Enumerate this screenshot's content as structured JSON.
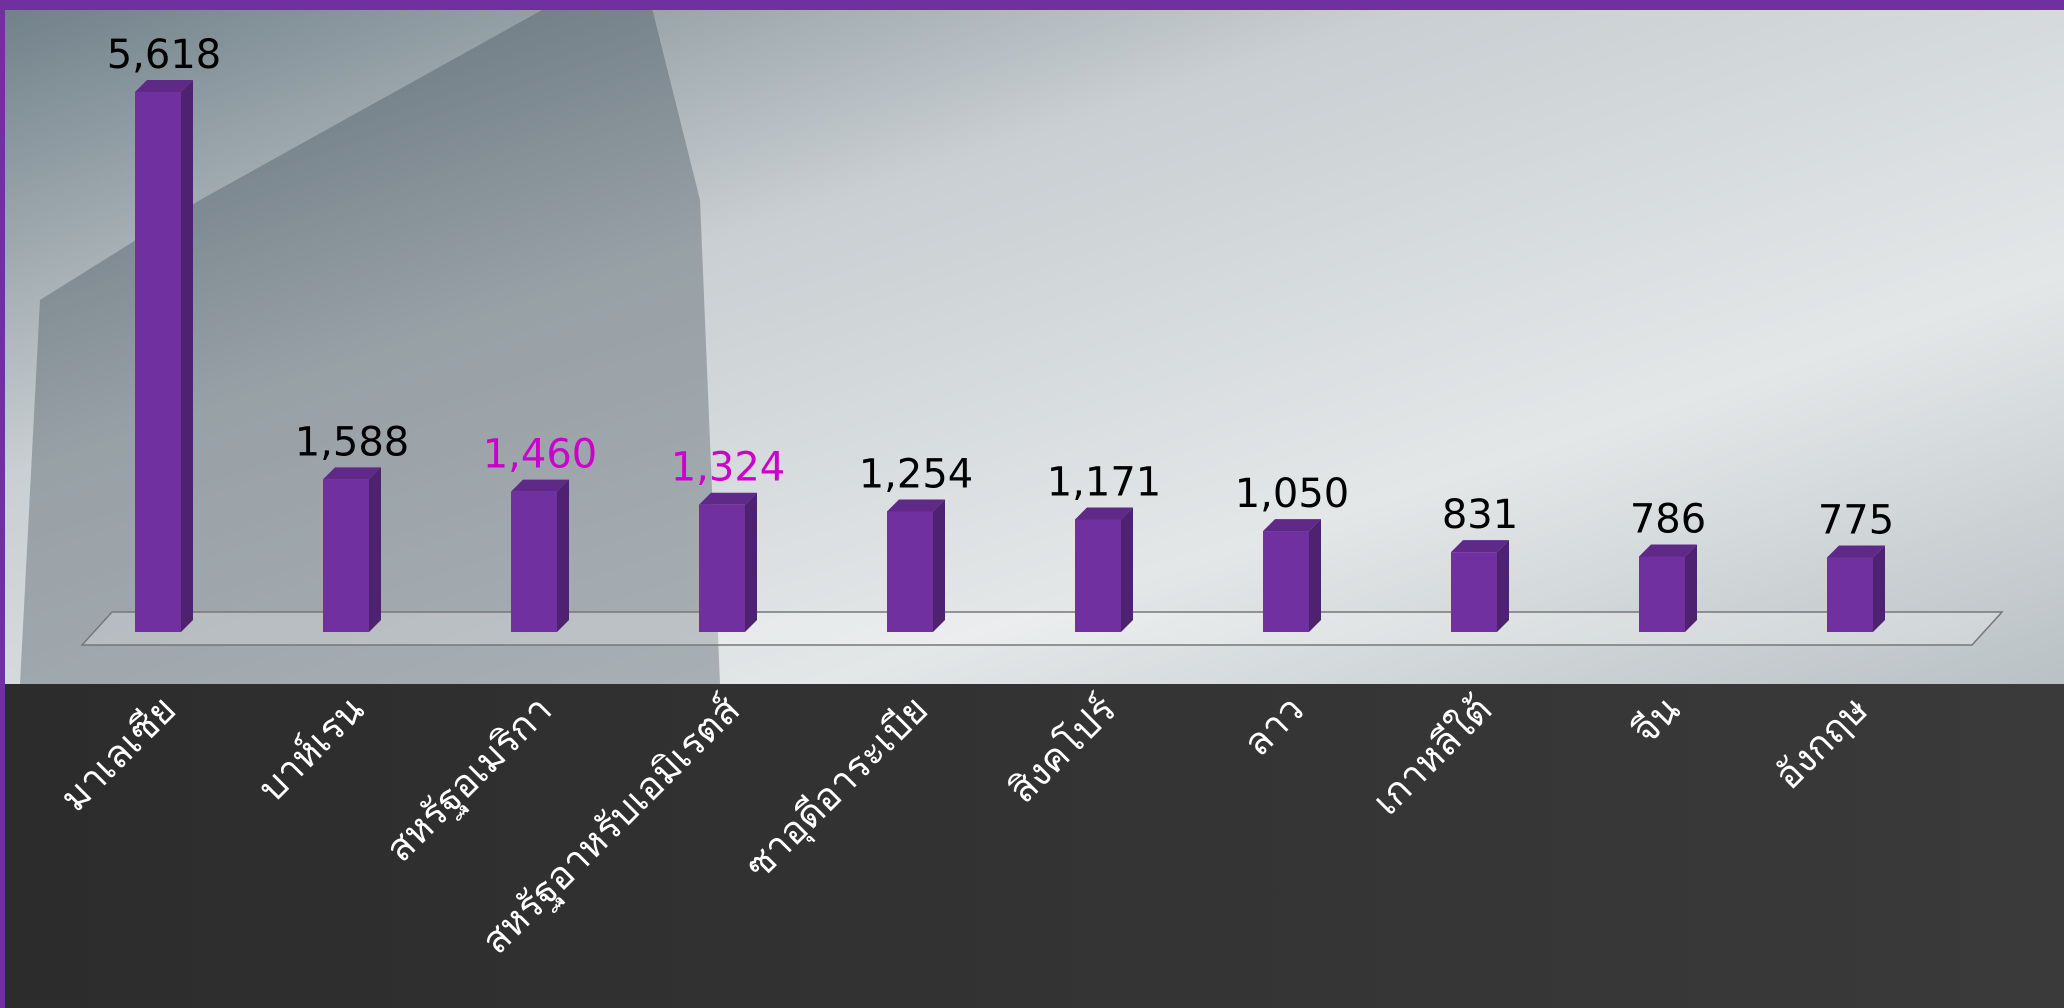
{
  "chart_data": {
    "type": "bar3d",
    "categories": [
      "มาเลเซีย",
      "บาห์เรน",
      "สหรัฐอเมริกา",
      "สหรัฐอาหรับเอมิเรตส์",
      "ซาอุดีอาระเบีย",
      "สิงคโปร์",
      "ลาว",
      "เกาหลีใต้",
      "จีน",
      "อังกฤษ"
    ],
    "values": [
      5618,
      1588,
      1460,
      1324,
      1254,
      1171,
      1050,
      831,
      786,
      775
    ],
    "value_labels": [
      "5,618",
      "1,588",
      "1,460",
      "1,324",
      "1,254",
      "1,171",
      "1,050",
      "831",
      "786",
      "775"
    ],
    "value_label_colors": [
      "#000000",
      "#000000",
      "#cc00cc",
      "#cc00cc",
      "#000000",
      "#000000",
      "#000000",
      "#000000",
      "#000000",
      "#000000"
    ],
    "color": "#7030a0"
  }
}
